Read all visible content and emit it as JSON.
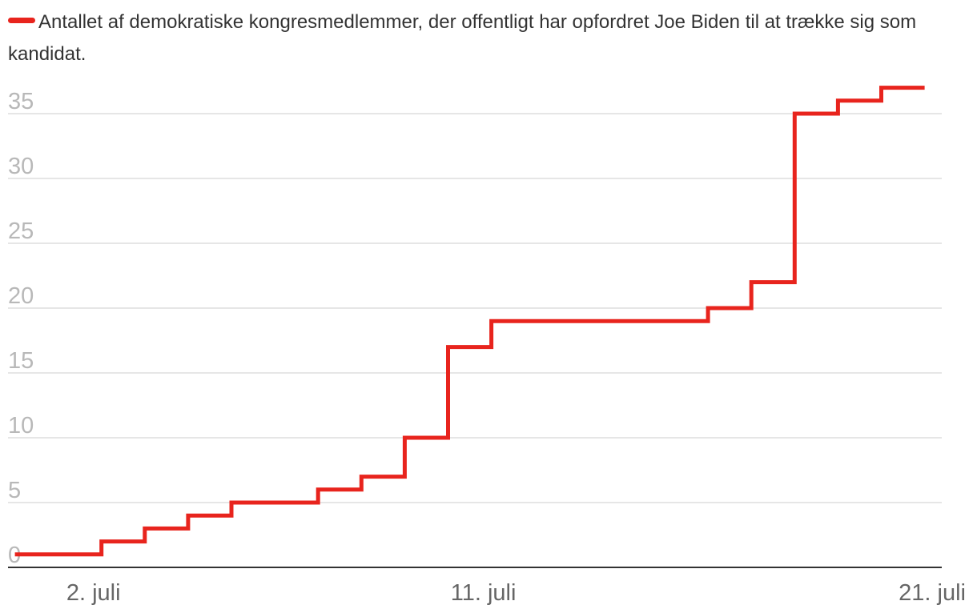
{
  "chart_data": {
    "type": "line",
    "step": true,
    "title": "Antallet af demokratiske kongresmedlemmer, der offentligt har opfordret Joe Biden til at trække sig som kandidat.",
    "xlabel": "",
    "ylabel": "",
    "series": [
      {
        "name": "Antallet af demokratiske kongresmedlemmer, der offentligt har opfordret Joe Biden til at trække sig som kandidat.",
        "color": "#e8241d",
        "x": [
          1,
          2,
          3,
          4,
          5,
          6,
          7,
          8,
          9,
          10,
          11,
          12,
          13,
          14,
          15,
          16,
          17,
          18,
          19,
          20,
          21
        ],
        "values": [
          1,
          1,
          2,
          3,
          4,
          5,
          5,
          6,
          7,
          10,
          17,
          19,
          19,
          19,
          19,
          19,
          20,
          22,
          35,
          36,
          37
        ]
      }
    ],
    "xlim": [
      0,
      22
    ],
    "ylim": [
      0,
      36
    ],
    "yticks": [
      0,
      5,
      10,
      15,
      20,
      25,
      30,
      35
    ],
    "ytick_labels": [
      "0",
      "5",
      "10",
      "15",
      "20",
      "25",
      "30",
      "35"
    ],
    "xticks": [
      2,
      11,
      21
    ],
    "xtick_labels": [
      "2. juli",
      "11. juli",
      "21. juli"
    ],
    "grid": true,
    "legend": "top-left"
  }
}
